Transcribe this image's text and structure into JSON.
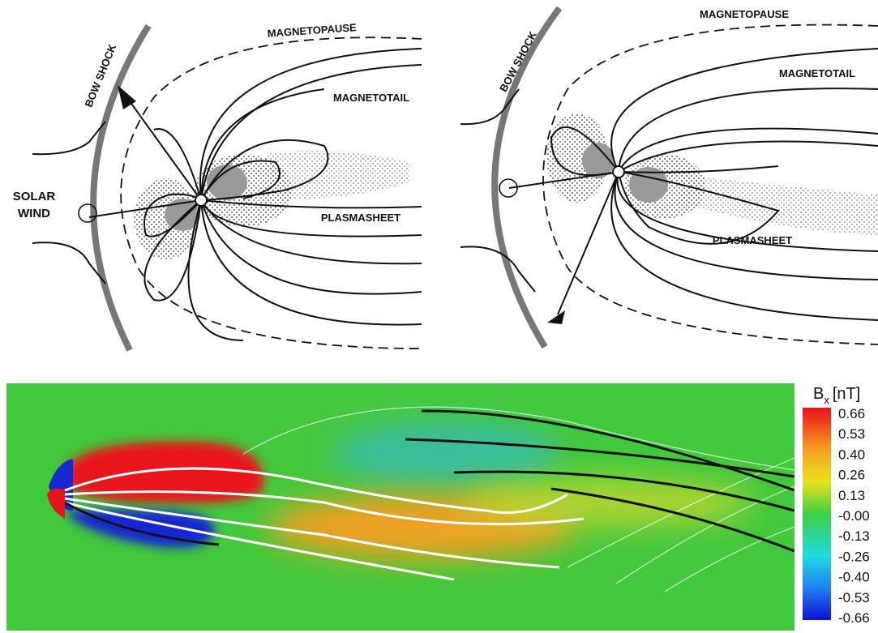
{
  "left_diagram": {
    "magnetopause": "MAGNETOPAUSE",
    "bow_shock": "BOW SHOCK",
    "magnetotail": "MAGNETOTAIL",
    "solar_wind": [
      "SOLAR",
      "WIND"
    ],
    "plasmasheet": "PLASMASHEET"
  },
  "right_diagram": {
    "magnetopause": "MAGNETOPAUSE",
    "bow_shock": "BOW SHOCK",
    "magnetotail": "MAGNETOTAIL",
    "plasmasheet": "PLASMASHEET"
  },
  "simulation": {
    "colorbar": {
      "symbol": "B",
      "subscript": "x",
      "unit": "[nT]",
      "ticks": [
        "0.66",
        "0.53",
        "0.40",
        "0.26",
        "0.13",
        "-0.00",
        "-0.13",
        "-0.26",
        "-0.40",
        "-0.53",
        "-0.66"
      ]
    }
  }
}
